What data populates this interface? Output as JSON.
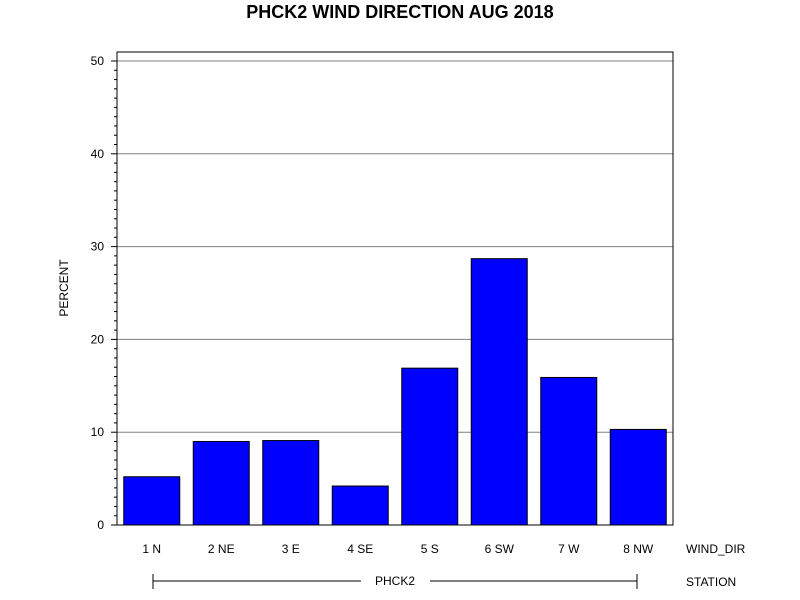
{
  "chart_data": {
    "type": "bar",
    "title": "PHCK2 WIND DIRECTION AUG 2018",
    "ylabel": "PERCENT",
    "xlabel": "WIND_DIR",
    "group_axis_label": "STATION",
    "group_label": "PHCK2",
    "categories": [
      "1 N",
      "2 NE",
      "3 E",
      "4 SE",
      "5 S",
      "6 SW",
      "7 W",
      "8 NW"
    ],
    "values": [
      5.2,
      9.0,
      9.1,
      4.2,
      16.9,
      28.7,
      15.9,
      10.3
    ],
    "ylim": [
      0,
      50
    ],
    "yticks": [
      0,
      10,
      20,
      30,
      40,
      50
    ],
    "grid": true,
    "bar_color": "#0000ff",
    "bar_edge_color": "#000000",
    "grid_color": "#808080"
  }
}
